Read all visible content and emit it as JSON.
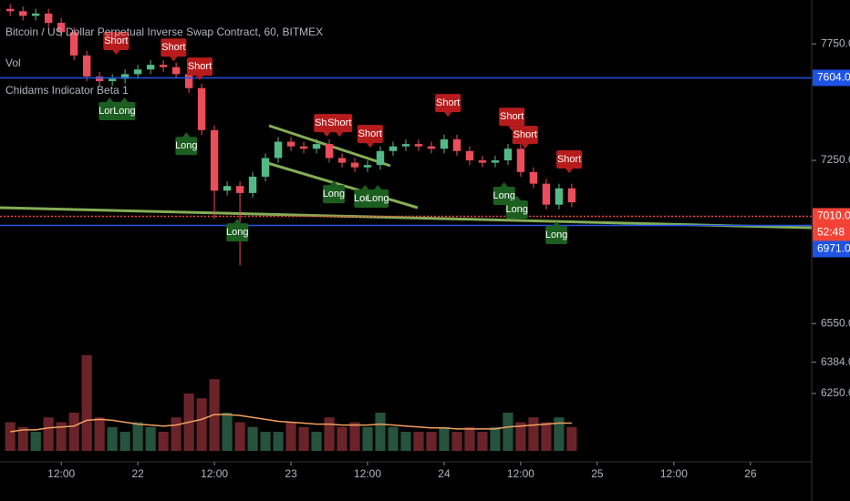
{
  "chart_data": {
    "type": "candlestick",
    "title": "Bitcoin / US Dollar Perpetual Inverse Swap Contract, 60, BITMEX",
    "indicators": [
      "Vol",
      "Chidams Indicator Beta 1"
    ],
    "up_color": "#53b987",
    "down_color": "#eb4d5c",
    "x": [
      4,
      6,
      8,
      10,
      12,
      14,
      16,
      18,
      20,
      22,
      24,
      26,
      28,
      30,
      32,
      34,
      36,
      38,
      40,
      42,
      44,
      46,
      48,
      50,
      52,
      54,
      56,
      58,
      60,
      62,
      64,
      66,
      68,
      70,
      72,
      74,
      76,
      78,
      80,
      82,
      84,
      86,
      88,
      90,
      92
    ],
    "open": [
      7900,
      7890,
      7870,
      7880,
      7840,
      7800,
      7700,
      7610,
      7590,
      7600,
      7620,
      7640,
      7660,
      7650,
      7620,
      7560,
      7380,
      7120,
      7140,
      7110,
      7180,
      7260,
      7330,
      7310,
      7300,
      7320,
      7260,
      7240,
      7220,
      7230,
      7290,
      7310,
      7320,
      7310,
      7300,
      7340,
      7290,
      7250,
      7240,
      7250,
      7300,
      7200,
      7150,
      7060,
      7130
    ],
    "high": [
      7920,
      7910,
      7900,
      7900,
      7860,
      7820,
      7720,
      7630,
      7620,
      7640,
      7660,
      7680,
      7680,
      7670,
      7640,
      7580,
      7400,
      7160,
      7160,
      7200,
      7280,
      7350,
      7350,
      7330,
      7340,
      7340,
      7280,
      7260,
      7250,
      7310,
      7330,
      7340,
      7340,
      7330,
      7360,
      7360,
      7310,
      7270,
      7270,
      7320,
      7320,
      7220,
      7170,
      7150,
      7150
    ],
    "low": [
      7870,
      7850,
      7850,
      7820,
      7780,
      7680,
      7590,
      7570,
      7570,
      7580,
      7600,
      7620,
      7630,
      7600,
      7540,
      7360,
      7000,
      7100,
      6800,
      7090,
      7160,
      7240,
      7290,
      7280,
      7280,
      7240,
      7220,
      7200,
      7200,
      7210,
      7270,
      7290,
      7290,
      7280,
      7280,
      7270,
      7230,
      7220,
      7220,
      7230,
      7180,
      7130,
      7040,
      7040,
      7050
    ],
    "close": [
      7890,
      7870,
      7880,
      7840,
      7800,
      7700,
      7610,
      7590,
      7600,
      7620,
      7640,
      7660,
      7650,
      7620,
      7560,
      7380,
      7120,
      7140,
      7110,
      7180,
      7260,
      7330,
      7310,
      7300,
      7320,
      7260,
      7240,
      7220,
      7230,
      7290,
      7310,
      7320,
      7310,
      7300,
      7340,
      7290,
      7250,
      7240,
      7250,
      7300,
      7200,
      7150,
      7060,
      7130,
      7070
    ],
    "volume": {
      "values": [
        30,
        25,
        20,
        35,
        30,
        40,
        100,
        35,
        25,
        20,
        30,
        25,
        20,
        35,
        60,
        55,
        75,
        40,
        30,
        25,
        20,
        20,
        30,
        25,
        20,
        35,
        25,
        30,
        25,
        40,
        25,
        20,
        20,
        20,
        25,
        20,
        25,
        20,
        25,
        40,
        30,
        35,
        30,
        35,
        25
      ],
      "ma": [
        20,
        22,
        22,
        24,
        25,
        26,
        32,
        33,
        32,
        30,
        28,
        27,
        26,
        27,
        30,
        33,
        38,
        38,
        37,
        35,
        33,
        31,
        30,
        29,
        28,
        28,
        27,
        27,
        27,
        28,
        27,
        26,
        25,
        24,
        24,
        23,
        23,
        23,
        23,
        25,
        26,
        27,
        28,
        29,
        29
      ],
      "ma_color": "#f0a060",
      "ylim": [
        0,
        100
      ]
    },
    "xlim": [
      2.4,
      129.6
    ],
    "ylim": [
      5945,
      7938
    ],
    "xticks": [
      {
        "value": 12,
        "label": "12:00"
      },
      {
        "value": 24,
        "label": "22"
      },
      {
        "value": 36,
        "label": "12:00"
      },
      {
        "value": 48,
        "label": "23"
      },
      {
        "value": 60,
        "label": "12:00"
      },
      {
        "value": 72,
        "label": "24"
      },
      {
        "value": 84,
        "label": "12:00"
      },
      {
        "value": 96,
        "label": "25"
      },
      {
        "value": 108,
        "label": "12:00"
      },
      {
        "value": 120,
        "label": "26"
      }
    ],
    "yticks": [
      {
        "value": 7750,
        "label": "7750.0"
      },
      {
        "value": 7250,
        "label": "7250.0"
      },
      {
        "value": 6550,
        "label": "6550.0"
      },
      {
        "value": 6384,
        "label": "6384.0"
      },
      {
        "value": 6250,
        "label": "6250.0"
      }
    ],
    "price_lines": [
      {
        "value": 7604,
        "label": "7604.0",
        "color": "#1e53e5"
      },
      {
        "value": 7010,
        "label": "7010.0",
        "color": "#f44336"
      },
      {
        "value": 6971,
        "label": "6971.0",
        "color": "#1e53e5"
      }
    ],
    "countdown": "52:48",
    "signals": [
      {
        "label": "Short",
        "x": 20.6,
        "y": 7762
      },
      {
        "label": "Short",
        "x": 29.6,
        "y": 7734
      },
      {
        "label": "Short",
        "x": 33.7,
        "y": 7652
      },
      {
        "label": "Long",
        "x": 19.6,
        "y": 7461
      },
      {
        "label": "Long",
        "x": 21.9,
        "y": 7461
      },
      {
        "label": "Long",
        "x": 31.6,
        "y": 7312
      },
      {
        "label": "Long",
        "x": 39.6,
        "y": 6941
      },
      {
        "label": "Short",
        "x": 53.6,
        "y": 7410
      },
      {
        "label": "Short",
        "x": 55.6,
        "y": 7410
      },
      {
        "label": "Short",
        "x": 60.4,
        "y": 7363
      },
      {
        "label": "Short",
        "x": 72.6,
        "y": 7496
      },
      {
        "label": "Short",
        "x": 82.6,
        "y": 7437
      },
      {
        "label": "Short",
        "x": 84.7,
        "y": 7359
      },
      {
        "label": "Short",
        "x": 91.6,
        "y": 7254
      },
      {
        "label": "Long",
        "x": 54.7,
        "y": 7105
      },
      {
        "label": "Long",
        "x": 59.6,
        "y": 7086
      },
      {
        "label": "Long",
        "x": 61.6,
        "y": 7086
      },
      {
        "label": "Long",
        "x": 81.4,
        "y": 7098
      },
      {
        "label": "Long",
        "x": 83.4,
        "y": 7039
      },
      {
        "label": "Long",
        "x": 89.6,
        "y": 6930
      }
    ]
  }
}
